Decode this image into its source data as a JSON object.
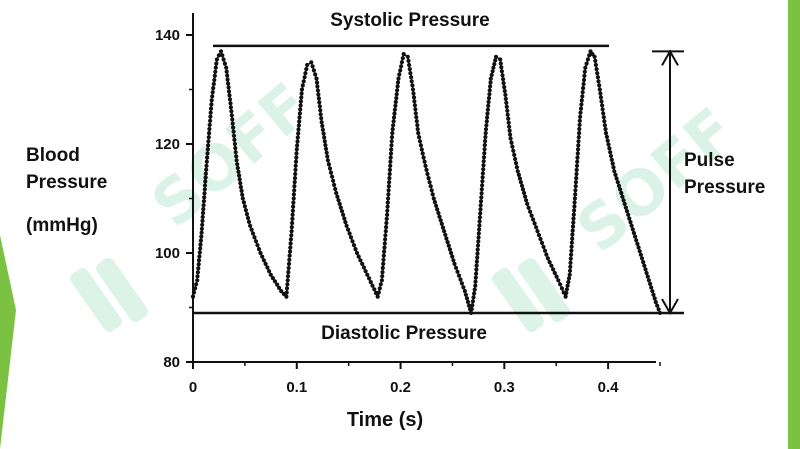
{
  "colors": {
    "accent": "#7cc242",
    "ink": "#111111",
    "watermark": "#bfe9d6"
  },
  "watermark": {
    "text": "SOFF",
    "logo_icon": "sf-logo-icon"
  },
  "labels": {
    "systolic": "Systolic Pressure",
    "diastolic": "Diastolic Pressure",
    "pulse_line1": "Pulse",
    "pulse_line2": "Pressure",
    "ylabel_line1": "Blood",
    "ylabel_line2": "Pressure",
    "ylabel_unit": "(mmHg)",
    "xlabel": "Time (s)"
  },
  "chart_data": {
    "type": "line",
    "title": "",
    "xlabel": "Time (s)",
    "ylabel": "Blood Pressure (mmHg)",
    "xlim": [
      0,
      0.45
    ],
    "ylim": [
      80,
      140
    ],
    "xticks": [
      0,
      0.1,
      0.2,
      0.3,
      0.4
    ],
    "xtick_labels": [
      "0",
      "0.1",
      "0.2",
      "0.3",
      "0.4"
    ],
    "yticks": [
      80,
      100,
      120,
      140
    ],
    "ytick_labels": [
      "80",
      "100",
      "120",
      "140"
    ],
    "grid": false,
    "systolic_level": 138,
    "diastolic_level": 89,
    "series": [
      {
        "points": [
          [
            0.0,
            92
          ],
          [
            0.004,
            95
          ],
          [
            0.008,
            103
          ],
          [
            0.013,
            116
          ],
          [
            0.018,
            128
          ],
          [
            0.023,
            135.5
          ],
          [
            0.027,
            137
          ],
          [
            0.032,
            134
          ],
          [
            0.037,
            126
          ],
          [
            0.042,
            117
          ],
          [
            0.048,
            110
          ],
          [
            0.055,
            105
          ],
          [
            0.065,
            100
          ],
          [
            0.075,
            96
          ],
          [
            0.085,
            93
          ],
          [
            0.09,
            92
          ],
          [
            0.095,
            104
          ],
          [
            0.1,
            119
          ],
          [
            0.105,
            130
          ],
          [
            0.11,
            134.5
          ],
          [
            0.114,
            135
          ],
          [
            0.119,
            132
          ],
          [
            0.124,
            124
          ],
          [
            0.13,
            117
          ],
          [
            0.138,
            111
          ],
          [
            0.148,
            105
          ],
          [
            0.158,
            100
          ],
          [
            0.168,
            96
          ],
          [
            0.178,
            92
          ],
          [
            0.182,
            95
          ],
          [
            0.187,
            107
          ],
          [
            0.192,
            122
          ],
          [
            0.198,
            132
          ],
          [
            0.203,
            136.5
          ],
          [
            0.207,
            136
          ],
          [
            0.212,
            130
          ],
          [
            0.217,
            122
          ],
          [
            0.224,
            116
          ],
          [
            0.232,
            110
          ],
          [
            0.242,
            104
          ],
          [
            0.252,
            98
          ],
          [
            0.262,
            93
          ],
          [
            0.268,
            89
          ],
          [
            0.272,
            94
          ],
          [
            0.277,
            108
          ],
          [
            0.282,
            122
          ],
          [
            0.287,
            132
          ],
          [
            0.292,
            136
          ],
          [
            0.296,
            135.5
          ],
          [
            0.301,
            129
          ],
          [
            0.306,
            121
          ],
          [
            0.313,
            115
          ],
          [
            0.322,
            109
          ],
          [
            0.332,
            104
          ],
          [
            0.342,
            99
          ],
          [
            0.352,
            95
          ],
          [
            0.359,
            92
          ],
          [
            0.363,
            96
          ],
          [
            0.368,
            110
          ],
          [
            0.373,
            125
          ],
          [
            0.378,
            134
          ],
          [
            0.383,
            137
          ],
          [
            0.387,
            136
          ],
          [
            0.392,
            130
          ],
          [
            0.398,
            122
          ],
          [
            0.406,
            115
          ],
          [
            0.416,
            109
          ],
          [
            0.426,
            103
          ],
          [
            0.436,
            97
          ],
          [
            0.446,
            91
          ],
          [
            0.45,
            89
          ]
        ]
      }
    ]
  }
}
